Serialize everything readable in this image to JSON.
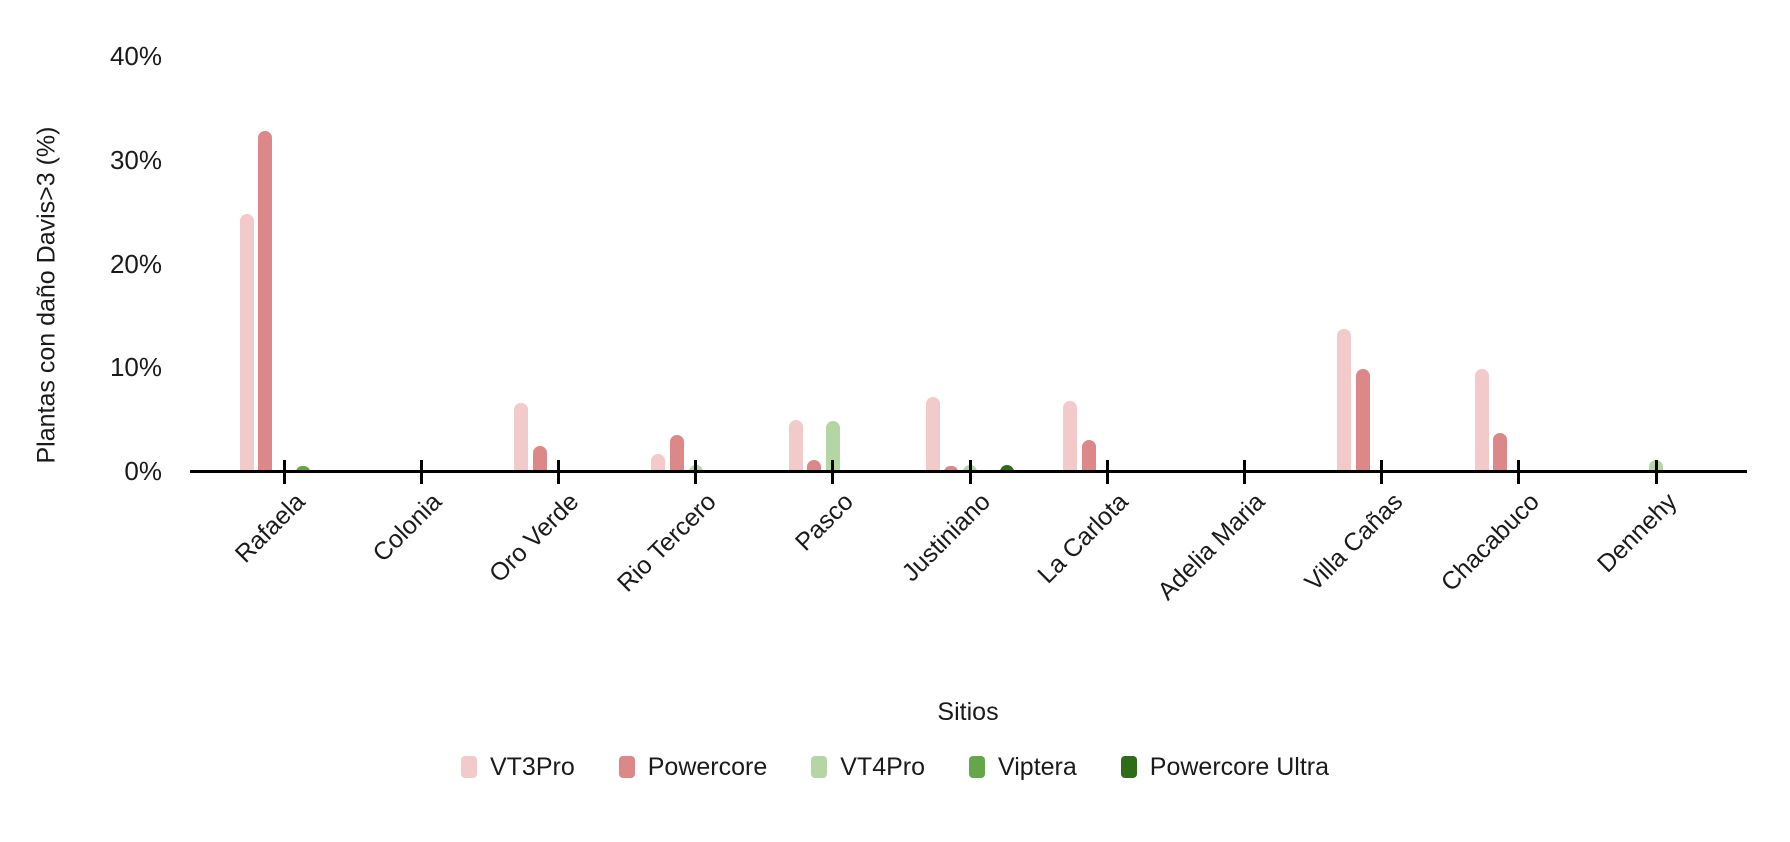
{
  "chart_data": {
    "type": "bar",
    "title": "",
    "xlabel": "Sitios",
    "ylabel": "Plantas con daño Davis>3 (%)",
    "yticks": [
      "0%",
      "10%",
      "20%",
      "30%",
      "40%"
    ],
    "ylim": [
      0,
      40
    ],
    "grid": false,
    "legend_position": "bottom",
    "categories": [
      "Rafaela",
      "Colonia",
      "Oro Verde",
      "Rio Tercero",
      "Pasco",
      "Justiniano",
      "La Carlota",
      "Adelia Maria",
      "Villa Cañas",
      "Chacabuco",
      "Dennehy"
    ],
    "series": [
      {
        "name": "VT3Pro",
        "color": "#f3caca",
        "values": [
          24.8,
          0,
          6.6,
          1.6,
          4.9,
          7.1,
          6.7,
          0,
          13.7,
          9.8,
          0
        ]
      },
      {
        "name": "Powercore",
        "color": "#dc8888",
        "values": [
          32.8,
          0,
          2.4,
          3.5,
          1.1,
          0.5,
          3.0,
          0,
          9.8,
          3.7,
          0
        ]
      },
      {
        "name": "VT4Pro",
        "color": "#b4d6a4",
        "values": [
          0,
          0,
          0,
          0.6,
          4.8,
          0.6,
          0,
          0,
          0,
          0,
          1.1
        ]
      },
      {
        "name": "Viptera",
        "color": "#64a74b",
        "values": [
          0.5,
          0,
          0,
          0,
          0,
          0,
          0,
          0,
          0,
          0,
          0
        ]
      },
      {
        "name": "Powercore Ultra",
        "color": "#2e6c18",
        "values": [
          0,
          0,
          0,
          0,
          0,
          0.6,
          0,
          0,
          0,
          0,
          0
        ]
      }
    ]
  }
}
